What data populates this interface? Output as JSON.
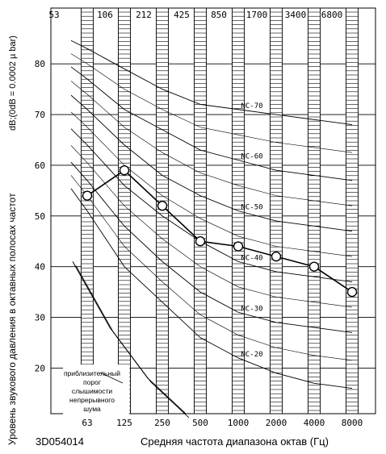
{
  "chart_data": {
    "type": "line",
    "ylabel": "Уровень звукового давления в октавных полосах частот",
    "yunit": "dB;(0dB = 0.0002 µ bar)",
    "xlabel": "Средняя частота диапазона октав (Гц)",
    "doc_code": "3D054014",
    "x_bottom_ticks": [
      "63",
      "125",
      "250",
      "500",
      "1000",
      "2000",
      "4000",
      "8000"
    ],
    "x_top_ticks": [
      "53",
      "106",
      "212",
      "425",
      "850",
      "1700",
      "3400",
      "6800"
    ],
    "y_ticks": [
      "20",
      "30",
      "40",
      "50",
      "60",
      "70",
      "80"
    ],
    "ylim": [
      11,
      91
    ],
    "grid": true,
    "series": {
      "x": [
        "63",
        "125",
        "250",
        "500",
        "1000",
        "2000",
        "4000",
        "8000"
      ],
      "values": [
        54,
        59,
        52,
        45,
        44,
        42,
        40,
        35
      ]
    },
    "nc_labels": [
      "NC-70",
      "NC-60",
      "NC-50",
      "NC-40",
      "NC-30",
      "NC-20"
    ],
    "nc_curves": {
      "NC-70": [
        83,
        79,
        75,
        72,
        71,
        70,
        69,
        68
      ],
      "NC-60": [
        77,
        71,
        67,
        63,
        61,
        59,
        58,
        57
      ],
      "NC-50": [
        71,
        64,
        58,
        54,
        51,
        49,
        48,
        47
      ],
      "NC-40": [
        64,
        56,
        50,
        45,
        41,
        39,
        38,
        37
      ],
      "NC-30": [
        57,
        48,
        41,
        35,
        31,
        29,
        28,
        27
      ],
      "NC-20": [
        51,
        40,
        33,
        26,
        22,
        19,
        17,
        16
      ]
    },
    "threshold_annotation": [
      "приблизительный",
      "порог",
      "слышимости",
      "непрерывного",
      "шума"
    ],
    "threshold_curve": [
      41,
      28,
      18,
      11
    ]
  }
}
